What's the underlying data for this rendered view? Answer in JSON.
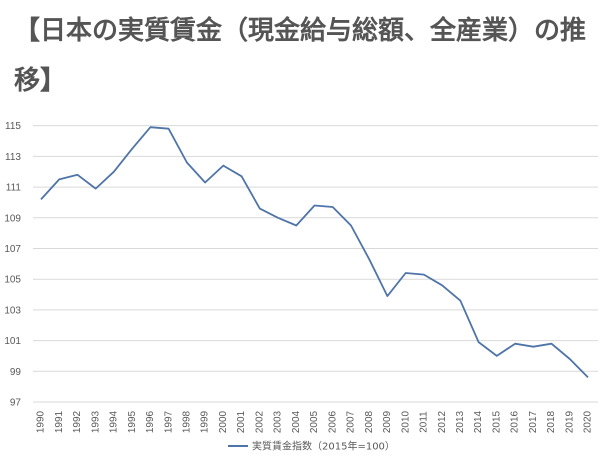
{
  "chart_data": {
    "type": "line",
    "title": "【日本の実質賃金（現金給与総額、全産業）の推移】",
    "x": [
      "1990",
      "1991",
      "1992",
      "1993",
      "1994",
      "1995",
      "1996",
      "1997",
      "1998",
      "1999",
      "2000",
      "2001",
      "2002",
      "2003",
      "2004",
      "2005",
      "2006",
      "2007",
      "2008",
      "2009",
      "2010",
      "2011",
      "2012",
      "2013",
      "2014",
      "2015",
      "2016",
      "2017",
      "2018",
      "2019",
      "2020"
    ],
    "series": [
      {
        "name": "実質賃金指数（2015年=100）",
        "color": "#4f74a8",
        "values": [
          110.2,
          111.5,
          111.8,
          110.9,
          112.0,
          113.5,
          114.9,
          114.8,
          112.6,
          111.3,
          112.4,
          111.7,
          109.6,
          109.0,
          108.5,
          109.8,
          109.7,
          108.5,
          106.3,
          103.9,
          105.4,
          105.3,
          104.6,
          103.6,
          100.9,
          100.0,
          100.8,
          100.6,
          100.8,
          99.8,
          98.6
        ]
      }
    ],
    "yticks": [
      97,
      99,
      101,
      103,
      105,
      107,
      109,
      111,
      113,
      115
    ],
    "ylim": [
      97,
      115.5
    ],
    "grid": true,
    "legend": "bottom",
    "xlabel": "",
    "ylabel": ""
  }
}
